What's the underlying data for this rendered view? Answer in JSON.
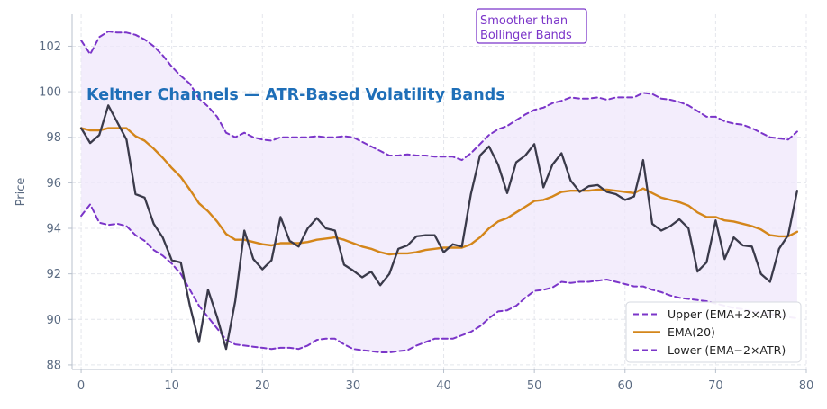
{
  "chart_data": {
    "type": "line",
    "title": "Keltner Channels — ATR-Based Volatility Bands",
    "xlabel": "",
    "ylabel": "Price",
    "xlim": [
      -1,
      80
    ],
    "ylim": [
      87.8,
      103.4
    ],
    "xticks": [
      "0",
      "10",
      "20",
      "30",
      "40",
      "50",
      "60",
      "70",
      "80"
    ],
    "yticks": [
      "88",
      "90",
      "92",
      "94",
      "96",
      "98",
      "100",
      "102"
    ],
    "grid": true,
    "legend_position": "lower-right",
    "x": [
      0,
      1,
      2,
      3,
      4,
      5,
      6,
      7,
      8,
      9,
      10,
      11,
      12,
      13,
      14,
      15,
      16,
      17,
      18,
      19,
      20,
      21,
      22,
      23,
      24,
      25,
      26,
      27,
      28,
      29,
      30,
      31,
      32,
      33,
      34,
      35,
      36,
      37,
      38,
      39,
      40,
      41,
      42,
      43,
      44,
      45,
      46,
      47,
      48,
      49,
      50,
      51,
      52,
      53,
      54,
      55,
      56,
      57,
      58,
      59,
      60,
      61,
      62,
      63,
      64,
      65,
      66,
      67,
      68,
      69,
      70,
      71,
      72,
      73,
      74,
      75,
      76,
      77,
      78,
      79
    ],
    "series": [
      {
        "name": "Price",
        "values": [
          98.4,
          97.75,
          98.1,
          99.4,
          98.65,
          97.9,
          95.5,
          95.35,
          94.2,
          93.6,
          92.6,
          92.5,
          90.6,
          89.0,
          91.3,
          90.1,
          88.7,
          90.8,
          93.9,
          92.65,
          92.2,
          92.6,
          94.5,
          93.45,
          93.2,
          94.0,
          94.45,
          94.0,
          93.9,
          92.4,
          92.15,
          91.85,
          92.1,
          91.5,
          92.0,
          93.1,
          93.25,
          93.65,
          93.7,
          93.7,
          92.95,
          93.3,
          93.2,
          95.5,
          97.2,
          97.6,
          96.8,
          95.55,
          96.9,
          97.2,
          97.7,
          95.8,
          96.8,
          97.3,
          96.1,
          95.6,
          95.85,
          95.9,
          95.6,
          95.5,
          95.25,
          95.4,
          97.0,
          94.2,
          93.9,
          94.1,
          94.4,
          94.0,
          92.1,
          92.5,
          94.35,
          92.65,
          93.6,
          93.25,
          93.2,
          92.0,
          91.65,
          93.1,
          93.7,
          95.65
        ],
        "color": "#3a3a4a"
      },
      {
        "name": "EMA(20)",
        "values": [
          98.4,
          98.3,
          98.3,
          98.4,
          98.4,
          98.4,
          98.05,
          97.85,
          97.5,
          97.1,
          96.65,
          96.25,
          95.7,
          95.1,
          94.75,
          94.3,
          93.75,
          93.5,
          93.5,
          93.4,
          93.3,
          93.25,
          93.35,
          93.35,
          93.35,
          93.4,
          93.5,
          93.55,
          93.6,
          93.5,
          93.35,
          93.2,
          93.1,
          92.95,
          92.85,
          92.9,
          92.9,
          92.95,
          93.05,
          93.1,
          93.15,
          93.15,
          93.15,
          93.3,
          93.6,
          94.0,
          94.3,
          94.45,
          94.7,
          94.95,
          95.2,
          95.25,
          95.4,
          95.6,
          95.65,
          95.65,
          95.65,
          95.7,
          95.7,
          95.65,
          95.6,
          95.55,
          95.75,
          95.55,
          95.35,
          95.25,
          95.15,
          95.0,
          94.7,
          94.5,
          94.5,
          94.35,
          94.3,
          94.2,
          94.1,
          93.95,
          93.7,
          93.65,
          93.65,
          93.85
        ],
        "color": "#d4861a"
      },
      {
        "name": "Upper (EMA+2×ATR)",
        "values": [
          102.25,
          101.65,
          102.4,
          102.65,
          102.6,
          102.6,
          102.5,
          102.3,
          102.0,
          101.6,
          101.1,
          100.7,
          100.35,
          99.7,
          99.35,
          98.9,
          98.2,
          98.0,
          98.2,
          98.0,
          97.9,
          97.85,
          98.0,
          98.0,
          98.0,
          98.0,
          98.05,
          98.0,
          98.0,
          98.05,
          98.0,
          97.8,
          97.6,
          97.4,
          97.2,
          97.2,
          97.25,
          97.2,
          97.2,
          97.15,
          97.15,
          97.15,
          97.0,
          97.3,
          97.7,
          98.1,
          98.35,
          98.5,
          98.75,
          99.0,
          99.2,
          99.3,
          99.5,
          99.6,
          99.75,
          99.7,
          99.7,
          99.75,
          99.65,
          99.75,
          99.75,
          99.75,
          99.95,
          99.9,
          99.7,
          99.65,
          99.55,
          99.4,
          99.15,
          98.9,
          98.9,
          98.7,
          98.6,
          98.55,
          98.4,
          98.2,
          98.0,
          97.95,
          97.9,
          98.25
        ],
        "color": "#7b35c9"
      },
      {
        "name": "Lower (EMA−2×ATR)",
        "values": [
          94.55,
          95.05,
          94.25,
          94.15,
          94.2,
          94.1,
          93.7,
          93.45,
          93.05,
          92.8,
          92.45,
          92.0,
          91.3,
          90.6,
          90.1,
          89.6,
          89.1,
          88.9,
          88.85,
          88.8,
          88.75,
          88.7,
          88.75,
          88.75,
          88.7,
          88.85,
          89.1,
          89.15,
          89.15,
          88.9,
          88.7,
          88.65,
          88.6,
          88.55,
          88.55,
          88.6,
          88.65,
          88.85,
          89.0,
          89.15,
          89.15,
          89.15,
          89.3,
          89.45,
          89.7,
          90.05,
          90.35,
          90.4,
          90.6,
          90.95,
          91.25,
          91.3,
          91.4,
          91.65,
          91.6,
          91.65,
          91.65,
          91.7,
          91.75,
          91.65,
          91.55,
          91.45,
          91.45,
          91.3,
          91.2,
          91.05,
          90.95,
          90.9,
          90.85,
          90.8,
          90.7,
          90.6,
          90.5,
          90.45,
          90.35,
          90.3,
          90.25,
          90.15,
          90.1,
          90.05
        ],
        "color": "#7b35c9"
      }
    ],
    "annotation": {
      "lines": [
        "Smoother than",
        "Bollinger Bands"
      ],
      "color": "#7b35c9"
    },
    "legend_entries": [
      "Upper (EMA+2×ATR)",
      "EMA(20)",
      "Lower (EMA−2×ATR)"
    ],
    "colors": {
      "band_fill": "#efe7fb",
      "grid": "#e4e6ec",
      "axis": "#b8c0cc",
      "title": "#1f6fb8"
    }
  }
}
